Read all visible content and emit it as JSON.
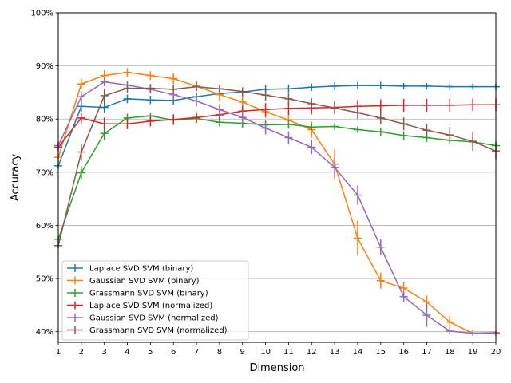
{
  "chart_data": {
    "type": "line",
    "title": "",
    "xlabel": "Dimension",
    "ylabel": "Accuracy",
    "xlim": [
      1,
      20
    ],
    "ylim": [
      38,
      100
    ],
    "x": [
      1,
      2,
      3,
      4,
      5,
      6,
      7,
      8,
      9,
      10,
      11,
      12,
      13,
      14,
      15,
      16,
      17,
      18,
      19,
      20
    ],
    "xticks": [
      "1",
      "2",
      "3",
      "4",
      "5",
      "6",
      "7",
      "8",
      "9",
      "10",
      "11",
      "12",
      "13",
      "14",
      "15",
      "16",
      "17",
      "18",
      "19",
      "20"
    ],
    "yticks": [
      {
        "value": 40,
        "label": "40%"
      },
      {
        "value": 50,
        "label": "50%"
      },
      {
        "value": 60,
        "label": "60%"
      },
      {
        "value": 70,
        "label": "70%"
      },
      {
        "value": 80,
        "label": "80%"
      },
      {
        "value": 90,
        "label": "90%"
      },
      {
        "value": 100,
        "label": "100%"
      }
    ],
    "grid": "horizontal",
    "legend_position": "lower-left",
    "series": [
      {
        "name": "Laplace SVD SVM (binary)",
        "color": "#1f77b4",
        "values": [
          71.2,
          82.4,
          82.2,
          83.8,
          83.6,
          83.5,
          84.2,
          84.8,
          85.1,
          85.6,
          85.7,
          86.0,
          86.2,
          86.3,
          86.3,
          86.2,
          86.2,
          86.1,
          86.1,
          86.1
        ],
        "errors": [
          0.5,
          1.0,
          1.0,
          0.8,
          0.8,
          0.8,
          0.8,
          0.8,
          0.8,
          0.8,
          0.8,
          0.7,
          0.7,
          0.7,
          0.7,
          0.6,
          0.6,
          0.6,
          0.6,
          0.6
        ]
      },
      {
        "name": "Gaussian SVD SVM (binary)",
        "color": "#ff7f0e",
        "values": [
          72.8,
          86.6,
          88.2,
          88.8,
          88.2,
          87.6,
          86.2,
          84.6,
          83.2,
          81.4,
          79.8,
          78.0,
          71.5,
          57.6,
          49.6,
          48.2,
          45.6,
          41.8,
          39.7,
          39.6
        ],
        "errors": [
          0.8,
          1.0,
          1.0,
          0.8,
          0.8,
          1.0,
          1.0,
          1.2,
          1.2,
          1.2,
          1.5,
          1.5,
          2.8,
          3.3,
          1.5,
          1.2,
          1.2,
          1.2,
          0.5,
          0.4
        ]
      },
      {
        "name": "Grassmann SVD SVM (binary)",
        "color": "#2ca02c",
        "values": [
          57.4,
          69.9,
          77.3,
          80.2,
          80.6,
          79.8,
          80.1,
          79.4,
          79.2,
          78.9,
          79.0,
          78.5,
          78.6,
          78.0,
          77.6,
          76.9,
          76.5,
          76.0,
          75.7,
          75.0
        ],
        "errors": [
          0.5,
          1.2,
          1.3,
          0.8,
          0.6,
          0.7,
          0.8,
          0.8,
          0.8,
          0.8,
          0.8,
          0.6,
          0.6,
          0.6,
          0.8,
          0.8,
          0.8,
          0.8,
          0.8,
          0.8
        ]
      },
      {
        "name": "Laplace SVD SVM (normalized)",
        "color": "#d62728",
        "values": [
          74.7,
          80.2,
          79.1,
          79.1,
          79.6,
          79.9,
          80.3,
          80.8,
          81.5,
          81.8,
          82.0,
          82.1,
          82.2,
          82.4,
          82.5,
          82.6,
          82.6,
          82.6,
          82.7,
          82.7
        ],
        "errors": [
          0.8,
          1.0,
          1.2,
          1.0,
          1.0,
          1.0,
          1.0,
          1.0,
          1.0,
          1.2,
          1.2,
          1.2,
          1.2,
          1.2,
          1.2,
          1.2,
          1.2,
          1.2,
          1.2,
          1.2
        ]
      },
      {
        "name": "Gaussian SVD SVM (normalized)",
        "color": "#9467bd",
        "values": [
          75.0,
          84.2,
          87.0,
          86.4,
          85.6,
          84.6,
          83.4,
          81.8,
          80.3,
          78.3,
          76.5,
          74.7,
          70.9,
          65.7,
          55.9,
          46.6,
          43.1,
          40.1,
          39.7,
          39.8
        ],
        "errors": [
          0.8,
          1.0,
          0.8,
          0.8,
          0.8,
          1.0,
          1.0,
          1.0,
          1.2,
          1.2,
          1.2,
          1.3,
          1.8,
          1.8,
          1.5,
          1.0,
          2.2,
          0.6,
          0.5,
          0.4
        ]
      },
      {
        "name": "Grassmann SVD SVM (normalized)",
        "color": "#8c564b",
        "values": [
          56.2,
          73.8,
          84.4,
          85.8,
          85.8,
          85.6,
          86.1,
          85.7,
          85.2,
          84.5,
          83.8,
          82.9,
          82.1,
          81.2,
          80.2,
          79.1,
          77.9,
          77.0,
          75.8,
          74.0
        ],
        "errors": [
          0.5,
          1.5,
          1.3,
          0.8,
          0.8,
          0.8,
          0.8,
          0.8,
          0.8,
          1.0,
          1.0,
          1.0,
          1.0,
          1.2,
          1.2,
          1.2,
          1.2,
          1.5,
          1.8,
          1.5
        ]
      }
    ]
  }
}
